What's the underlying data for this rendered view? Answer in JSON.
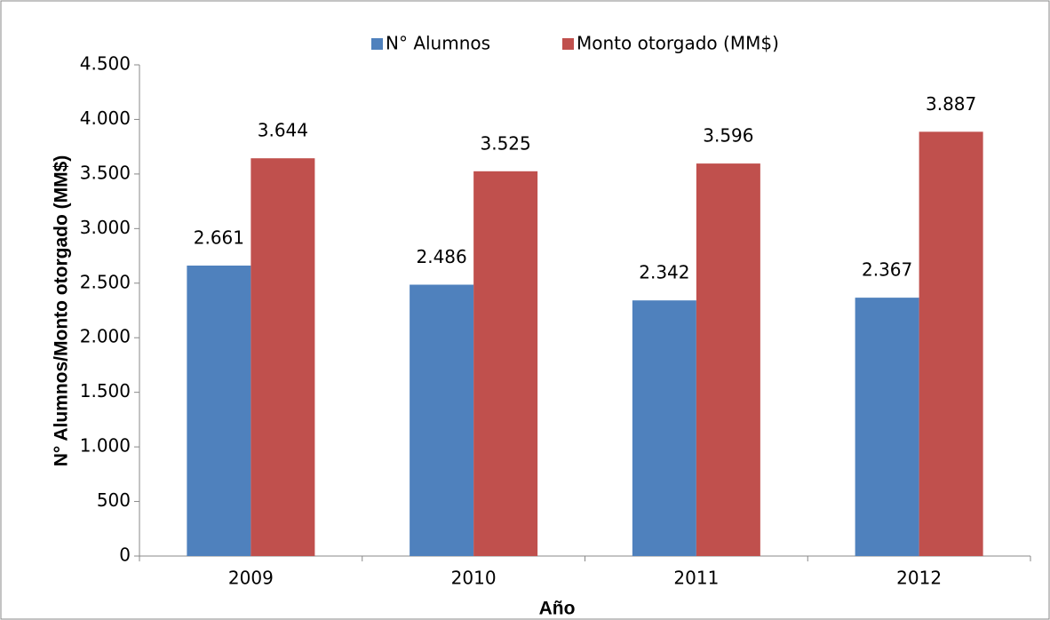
{
  "chart_data": {
    "type": "bar",
    "categories": [
      "2009",
      "2010",
      "2011",
      "2012"
    ],
    "series": [
      {
        "name": "N° Alumnos",
        "color": "#4f81bd",
        "values": [
          2661,
          2486,
          2342,
          2367
        ],
        "value_labels": [
          "2.661",
          "2.486",
          "2.342",
          "2.367"
        ]
      },
      {
        "name": "Monto otorgado (MM$)",
        "color": "#c0504d",
        "values": [
          3644,
          3525,
          3596,
          3887
        ],
        "value_labels": [
          "3.644",
          "3.525",
          "3.596",
          "3.887"
        ]
      }
    ],
    "x_label": "Año",
    "y_label": "N° Alumnos/Monto otorgado (MM$)",
    "ylim": [
      0,
      4500
    ],
    "yticks": [
      0,
      500,
      {
        "value": 1000,
        "label": "1.000"
      },
      {
        "value": 1500,
        "label": "1.500"
      },
      {
        "value": 2000,
        "label": "2.000"
      },
      {
        "value": 2500,
        "label": "2.500"
      },
      {
        "value": 3000,
        "label": "3.000"
      },
      {
        "value": 3500,
        "label": "3.500"
      },
      {
        "value": 4000,
        "label": "4.000"
      },
      {
        "value": 4500,
        "label": "4.500"
      }
    ],
    "legend": "top",
    "grid": false
  }
}
